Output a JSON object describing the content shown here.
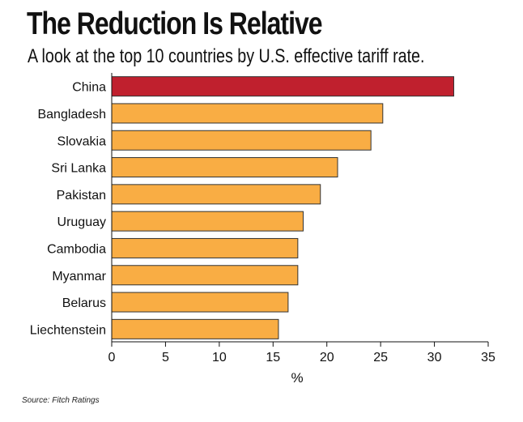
{
  "title": "The Reduction Is Relative",
  "subtitle": "A look at the top 10 countries by U.S. effective tariff rate.",
  "source": "Source: Fitch Ratings",
  "colors": {
    "highlight": "#c0202e",
    "bar": "#f9ad44",
    "bar_stroke": "#333333",
    "axis": "#111111"
  },
  "chart_data": {
    "type": "bar",
    "orientation": "horizontal",
    "categories": [
      "China",
      "Bangladesh",
      "Slovakia",
      "Sri Lanka",
      "Pakistan",
      "Uruguay",
      "Cambodia",
      "Myanmar",
      "Belarus",
      "Liechtenstein"
    ],
    "values": [
      31.8,
      25.2,
      24.1,
      21.0,
      19.4,
      17.8,
      17.3,
      17.3,
      16.4,
      15.5
    ],
    "highlight": "China",
    "xlabel": "%",
    "ylabel": "",
    "xlim": [
      0,
      35
    ],
    "xticks": [
      0,
      5,
      10,
      15,
      20,
      25,
      30,
      35
    ],
    "grid": false,
    "legend": "none"
  }
}
